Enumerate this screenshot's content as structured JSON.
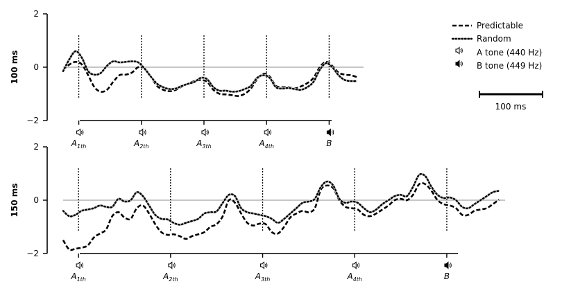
{
  "chart_data": [
    {
      "type": "line",
      "ylabel": "100 ms",
      "ylim": [
        -2,
        2
      ],
      "yticks": [
        2,
        0,
        -2
      ],
      "ytick_labels": [
        "2",
        "0",
        "−2"
      ],
      "xlim": [
        0,
        48
      ],
      "event_times": [
        2.5,
        12.5,
        22.5,
        32.5,
        42.5
      ],
      "events": [
        {
          "label": "A",
          "sub": "1th"
        },
        {
          "label": "A",
          "sub": "2th"
        },
        {
          "label": "A",
          "sub": "3th"
        },
        {
          "label": "A",
          "sub": "4th"
        },
        {
          "label": "B",
          "sub": ""
        }
      ],
      "series": [
        {
          "name": "Predictable",
          "style": "dashed",
          "x": [
            0,
            1,
            2,
            3,
            4,
            5,
            6,
            7,
            8,
            9,
            10,
            11,
            12,
            13,
            14,
            15,
            16,
            17,
            18,
            19,
            20,
            21,
            22,
            23,
            24,
            25,
            26,
            27,
            28,
            29,
            30,
            31,
            32,
            33,
            34,
            35,
            36,
            37,
            38,
            39,
            40,
            41,
            42,
            43,
            44,
            45,
            46,
            47
          ],
          "values": [
            -0.1,
            0.1,
            0.2,
            0.1,
            -0.3,
            -0.75,
            -0.92,
            -0.85,
            -0.55,
            -0.3,
            -0.28,
            -0.2,
            0.0,
            -0.05,
            -0.35,
            -0.7,
            -0.85,
            -0.9,
            -0.85,
            -0.72,
            -0.62,
            -0.52,
            -0.48,
            -0.55,
            -0.85,
            -1.0,
            -1.02,
            -1.05,
            -1.08,
            -1.0,
            -0.8,
            -0.45,
            -0.25,
            -0.35,
            -0.7,
            -0.75,
            -0.75,
            -0.8,
            -0.72,
            -0.6,
            -0.4,
            0.0,
            0.2,
            0.05,
            -0.2,
            -0.28,
            -0.3,
            -0.38
          ]
        },
        {
          "name": "Random",
          "style": "dotted",
          "x": [
            0,
            1,
            2,
            3,
            4,
            5,
            6,
            7,
            8,
            9,
            10,
            11,
            12,
            13,
            14,
            15,
            16,
            17,
            18,
            19,
            20,
            21,
            22,
            23,
            24,
            25,
            26,
            27,
            28,
            29,
            30,
            31,
            32,
            33,
            34,
            35,
            36,
            37,
            38,
            39,
            40,
            41,
            42,
            43,
            44,
            45,
            46,
            47
          ],
          "values": [
            -0.15,
            0.3,
            0.6,
            0.35,
            -0.15,
            -0.28,
            -0.22,
            0.05,
            0.22,
            0.18,
            0.2,
            0.22,
            0.18,
            -0.05,
            -0.35,
            -0.62,
            -0.75,
            -0.82,
            -0.8,
            -0.7,
            -0.62,
            -0.55,
            -0.4,
            -0.45,
            -0.75,
            -0.88,
            -0.88,
            -0.92,
            -0.9,
            -0.82,
            -0.7,
            -0.4,
            -0.3,
            -0.4,
            -0.75,
            -0.8,
            -0.78,
            -0.82,
            -0.85,
            -0.75,
            -0.55,
            -0.1,
            0.15,
            0.0,
            -0.3,
            -0.48,
            -0.52,
            -0.52
          ]
        }
      ]
    },
    {
      "type": "line",
      "ylabel": "150 ms",
      "ylim": [
        -2,
        2
      ],
      "yticks": [
        2,
        0,
        -2
      ],
      "ytick_labels": [
        "2",
        "0",
        "−2"
      ],
      "xlim": [
        0,
        72
      ],
      "event_times": [
        2.5,
        17.5,
        32.5,
        47.5,
        62.5
      ],
      "events": [
        {
          "label": "A",
          "sub": "1th"
        },
        {
          "label": "A",
          "sub": "2th"
        },
        {
          "label": "A",
          "sub": "3th"
        },
        {
          "label": "A",
          "sub": "4th"
        },
        {
          "label": "B",
          "sub": ""
        }
      ],
      "series": [
        {
          "name": "Predictable",
          "style": "dashed",
          "x": [
            0,
            1,
            2,
            3,
            4,
            5,
            6,
            7,
            8,
            9,
            10,
            11,
            12,
            13,
            14,
            15,
            16,
            17,
            18,
            19,
            20,
            21,
            22,
            23,
            24,
            25,
            26,
            27,
            28,
            29,
            30,
            31,
            32,
            33,
            34,
            35,
            36,
            37,
            38,
            39,
            40,
            41,
            42,
            43,
            44,
            45,
            46,
            47,
            48,
            49,
            50,
            51,
            52,
            53,
            54,
            55,
            56,
            57,
            58,
            59,
            60,
            61,
            62,
            63,
            64,
            65,
            66,
            67,
            68,
            69,
            70,
            71
          ],
          "values": [
            -1.5,
            -1.85,
            -1.82,
            -1.78,
            -1.7,
            -1.4,
            -1.25,
            -1.1,
            -0.6,
            -0.45,
            -0.65,
            -0.7,
            -0.3,
            -0.2,
            -0.5,
            -0.9,
            -1.2,
            -1.3,
            -1.28,
            -1.35,
            -1.45,
            -1.35,
            -1.28,
            -1.2,
            -1.0,
            -0.9,
            -0.6,
            0.0,
            -0.1,
            -0.5,
            -0.85,
            -0.95,
            -0.88,
            -0.9,
            -1.2,
            -1.25,
            -1.0,
            -0.65,
            -0.5,
            -0.4,
            -0.45,
            -0.3,
            0.4,
            0.55,
            0.45,
            0.0,
            -0.25,
            -0.3,
            -0.35,
            -0.55,
            -0.6,
            -0.5,
            -0.35,
            -0.2,
            0.0,
            0.05,
            0.0,
            0.2,
            0.6,
            0.6,
            0.35,
            0.0,
            -0.15,
            -0.2,
            -0.3,
            -0.55,
            -0.55,
            -0.4,
            -0.35,
            -0.3,
            -0.15,
            0.02
          ]
        },
        {
          "name": "Random",
          "style": "dotted",
          "x": [
            0,
            1,
            2,
            3,
            4,
            5,
            6,
            7,
            8,
            9,
            10,
            11,
            12,
            13,
            14,
            15,
            16,
            17,
            18,
            19,
            20,
            21,
            22,
            23,
            24,
            25,
            26,
            27,
            28,
            29,
            30,
            31,
            32,
            33,
            34,
            35,
            36,
            37,
            38,
            39,
            40,
            41,
            42,
            43,
            44,
            45,
            46,
            47,
            48,
            49,
            50,
            51,
            52,
            53,
            54,
            55,
            56,
            57,
            58,
            59,
            60,
            61,
            62,
            63,
            64,
            65,
            66,
            67,
            68,
            69,
            70,
            71
          ],
          "values": [
            -0.4,
            -0.6,
            -0.55,
            -0.4,
            -0.35,
            -0.3,
            -0.2,
            -0.25,
            -0.25,
            0.05,
            -0.05,
            0.0,
            0.3,
            0.15,
            -0.2,
            -0.55,
            -0.7,
            -0.72,
            -0.85,
            -0.92,
            -0.85,
            -0.78,
            -0.7,
            -0.5,
            -0.45,
            -0.42,
            -0.1,
            0.2,
            0.15,
            -0.3,
            -0.45,
            -0.5,
            -0.55,
            -0.6,
            -0.7,
            -0.85,
            -0.7,
            -0.5,
            -0.3,
            -0.1,
            -0.05,
            0.05,
            0.5,
            0.7,
            0.55,
            0.05,
            -0.1,
            -0.05,
            -0.1,
            -0.3,
            -0.45,
            -0.35,
            -0.15,
            0.0,
            0.15,
            0.2,
            0.15,
            0.5,
            0.95,
            0.9,
            0.5,
            0.2,
            0.08,
            0.1,
            0.0,
            -0.25,
            -0.3,
            -0.15,
            0.0,
            0.15,
            0.3,
            0.35
          ]
        }
      ]
    }
  ],
  "legend": {
    "items": [
      {
        "label": "Predictable",
        "kind": "dashed"
      },
      {
        "label": "Random",
        "kind": "dotted"
      },
      {
        "label": "A tone (440 Hz)",
        "kind": "speaker-outline"
      },
      {
        "label": "B tone (449 Hz)",
        "kind": "speaker-filled"
      }
    ]
  },
  "scale_bar": {
    "label": "100 ms"
  }
}
